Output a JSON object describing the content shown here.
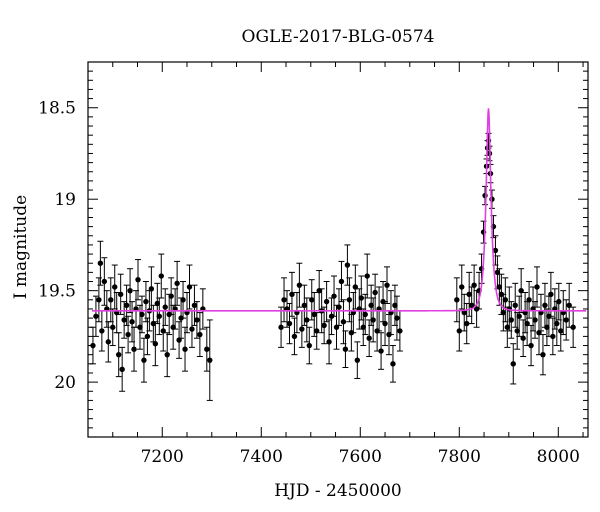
{
  "chart_data": {
    "type": "scatter",
    "title": "OGLE-2017-BLG-0574",
    "xlabel": "HJD - 2450000",
    "ylabel": "I magnitude",
    "xlim": [
      7050,
      8060
    ],
    "ylim": [
      20.3,
      18.25
    ],
    "y_axis_inverted": true,
    "grid": false,
    "x_ticks": [
      "7200",
      "7400",
      "7600",
      "7800",
      "8000"
    ],
    "y_ticks": [
      "18.5",
      "19",
      "19.5",
      "20"
    ],
    "colors": {
      "points": "#000000",
      "model": "#e040e0"
    },
    "series": [
      {
        "type": "scatter_errorbars",
        "points": [
          [
            7060,
            19.8,
            0.1
          ],
          [
            7066,
            19.64,
            0.11
          ],
          [
            7072,
            19.55,
            0.12
          ],
          [
            7075,
            19.35,
            0.12
          ],
          [
            7078,
            19.72,
            0.11
          ],
          [
            7083,
            19.45,
            0.13
          ],
          [
            7088,
            19.6,
            0.1
          ],
          [
            7091,
            19.78,
            0.11
          ],
          [
            7096,
            19.55,
            0.12
          ],
          [
            7100,
            19.7,
            0.1
          ],
          [
            7104,
            19.48,
            0.12
          ],
          [
            7108,
            19.62,
            0.11
          ],
          [
            7112,
            19.85,
            0.12
          ],
          [
            7116,
            19.52,
            0.11
          ],
          [
            7119,
            19.93,
            0.12
          ],
          [
            7123,
            19.66,
            0.1
          ],
          [
            7128,
            19.58,
            0.11
          ],
          [
            7131,
            19.74,
            0.1
          ],
          [
            7135,
            19.5,
            0.12
          ],
          [
            7139,
            19.67,
            0.11
          ],
          [
            7143,
            19.82,
            0.12
          ],
          [
            7147,
            19.6,
            0.1
          ],
          [
            7151,
            19.44,
            0.11
          ],
          [
            7155,
            19.7,
            0.12
          ],
          [
            7159,
            19.63,
            0.1
          ],
          [
            7163,
            19.88,
            0.12
          ],
          [
            7167,
            19.56,
            0.11
          ],
          [
            7170,
            19.75,
            0.1
          ],
          [
            7174,
            19.61,
            0.11
          ],
          [
            7178,
            19.49,
            0.12
          ],
          [
            7182,
            19.68,
            0.1
          ],
          [
            7186,
            19.79,
            0.12
          ],
          [
            7190,
            19.57,
            0.11
          ],
          [
            7194,
            19.64,
            0.1
          ],
          [
            7198,
            19.42,
            0.12
          ],
          [
            7202,
            19.72,
            0.11
          ],
          [
            7206,
            19.59,
            0.1
          ],
          [
            7210,
            19.85,
            0.12
          ],
          [
            7214,
            19.63,
            0.11
          ],
          [
            7218,
            19.53,
            0.1
          ],
          [
            7222,
            19.7,
            0.12
          ],
          [
            7226,
            19.6,
            0.11
          ],
          [
            7230,
            19.46,
            0.12
          ],
          [
            7234,
            19.77,
            0.1
          ],
          [
            7238,
            19.65,
            0.11
          ],
          [
            7242,
            19.55,
            0.1
          ],
          [
            7246,
            19.82,
            0.12
          ],
          [
            7250,
            19.62,
            0.11
          ],
          [
            7255,
            19.48,
            0.12
          ],
          [
            7260,
            19.71,
            0.1
          ],
          [
            7265,
            19.58,
            0.11
          ],
          [
            7270,
            19.66,
            0.1
          ],
          [
            7276,
            19.74,
            0.12
          ],
          [
            7282,
            19.6,
            0.11
          ],
          [
            7290,
            19.82,
            0.12
          ],
          [
            7296,
            19.88,
            0.22
          ],
          [
            7440,
            19.7,
            0.11
          ],
          [
            7446,
            19.55,
            0.12
          ],
          [
            7452,
            19.6,
            0.1
          ],
          [
            7457,
            19.68,
            0.11
          ],
          [
            7462,
            19.52,
            0.12
          ],
          [
            7467,
            19.75,
            0.1
          ],
          [
            7472,
            19.62,
            0.11
          ],
          [
            7477,
            19.47,
            0.12
          ],
          [
            7482,
            19.71,
            0.1
          ],
          [
            7487,
            19.58,
            0.11
          ],
          [
            7492,
            19.66,
            0.12
          ],
          [
            7497,
            19.8,
            0.1
          ],
          [
            7502,
            19.55,
            0.11
          ],
          [
            7507,
            19.63,
            0.12
          ],
          [
            7512,
            19.72,
            0.1
          ],
          [
            7517,
            19.5,
            0.11
          ],
          [
            7522,
            19.61,
            0.12
          ],
          [
            7527,
            19.69,
            0.1
          ],
          [
            7532,
            19.56,
            0.11
          ],
          [
            7537,
            19.78,
            0.12
          ],
          [
            7542,
            19.64,
            0.1
          ],
          [
            7547,
            19.53,
            0.11
          ],
          [
            7552,
            19.7,
            0.12
          ],
          [
            7557,
            19.59,
            0.1
          ],
          [
            7562,
            19.45,
            0.11
          ],
          [
            7566,
            19.67,
            0.12
          ],
          [
            7570,
            19.82,
            0.1
          ],
          [
            7574,
            19.36,
            0.11
          ],
          [
            7578,
            19.55,
            0.12
          ],
          [
            7582,
            19.73,
            0.1
          ],
          [
            7586,
            19.62,
            0.11
          ],
          [
            7590,
            19.48,
            0.12
          ],
          [
            7594,
            19.88,
            0.1
          ],
          [
            7598,
            19.6,
            0.11
          ],
          [
            7602,
            19.54,
            0.12
          ],
          [
            7606,
            19.7,
            0.1
          ],
          [
            7610,
            19.63,
            0.11
          ],
          [
            7614,
            19.42,
            0.12
          ],
          [
            7618,
            19.76,
            0.1
          ],
          [
            7622,
            19.58,
            0.11
          ],
          [
            7626,
            19.66,
            0.12
          ],
          [
            7630,
            19.51,
            0.1
          ],
          [
            7634,
            19.72,
            0.11
          ],
          [
            7638,
            19.6,
            0.12
          ],
          [
            7642,
            19.83,
            0.1
          ],
          [
            7646,
            19.56,
            0.11
          ],
          [
            7650,
            19.68,
            0.12
          ],
          [
            7654,
            19.47,
            0.1
          ],
          [
            7658,
            19.74,
            0.11
          ],
          [
            7662,
            19.62,
            0.12
          ],
          [
            7666,
            19.9,
            0.1
          ],
          [
            7670,
            19.58,
            0.11
          ],
          [
            7674,
            19.65,
            0.12
          ],
          [
            7680,
            19.72,
            0.11
          ],
          [
            7795,
            19.55,
            0.12
          ],
          [
            7800,
            19.72,
            0.11
          ],
          [
            7805,
            19.48,
            0.12
          ],
          [
            7810,
            19.62,
            0.1
          ],
          [
            7815,
            19.68,
            0.11
          ],
          [
            7820,
            19.52,
            0.12
          ],
          [
            7825,
            19.58,
            0.1
          ],
          [
            7830,
            19.47,
            0.11
          ],
          [
            7835,
            19.6,
            0.1
          ],
          [
            7840,
            19.5,
            0.1
          ],
          [
            7845,
            19.38,
            0.08
          ],
          [
            7849,
            19.18,
            0.06
          ],
          [
            7852,
            18.98,
            0.05
          ],
          [
            7855,
            18.82,
            0.04
          ],
          [
            7857,
            18.72,
            0.04
          ],
          [
            7859,
            18.68,
            0.04
          ],
          [
            7861,
            18.75,
            0.04
          ],
          [
            7863,
            18.86,
            0.05
          ],
          [
            7866,
            19.0,
            0.05
          ],
          [
            7869,
            19.15,
            0.06
          ],
          [
            7873,
            19.28,
            0.08
          ],
          [
            7877,
            19.4,
            0.09
          ],
          [
            7881,
            19.48,
            0.1
          ],
          [
            7885,
            19.52,
            0.11
          ],
          [
            7889,
            19.62,
            0.1
          ],
          [
            7893,
            19.55,
            0.12
          ],
          [
            7897,
            19.7,
            0.11
          ],
          [
            7901,
            19.6,
            0.12
          ],
          [
            7905,
            19.66,
            0.1
          ],
          [
            7909,
            19.9,
            0.11
          ],
          [
            7913,
            19.58,
            0.12
          ],
          [
            7917,
            19.72,
            0.1
          ],
          [
            7921,
            19.64,
            0.11
          ],
          [
            7925,
            19.5,
            0.12
          ],
          [
            7929,
            19.76,
            0.1
          ],
          [
            7933,
            19.62,
            0.11
          ],
          [
            7937,
            19.68,
            0.12
          ],
          [
            7941,
            19.55,
            0.1
          ],
          [
            7945,
            19.8,
            0.11
          ],
          [
            7949,
            19.6,
            0.12
          ],
          [
            7953,
            19.66,
            0.1
          ],
          [
            7957,
            19.48,
            0.11
          ],
          [
            7961,
            19.73,
            0.12
          ],
          [
            7965,
            19.62,
            0.1
          ],
          [
            7969,
            19.85,
            0.11
          ],
          [
            7973,
            19.58,
            0.12
          ],
          [
            7977,
            19.7,
            0.1
          ],
          [
            7981,
            19.64,
            0.11
          ],
          [
            7985,
            19.52,
            0.12
          ],
          [
            7989,
            19.75,
            0.1
          ],
          [
            7993,
            19.6,
            0.11
          ],
          [
            7997,
            19.68,
            0.12
          ],
          [
            8001,
            19.56,
            0.1
          ],
          [
            8005,
            19.72,
            0.11
          ],
          [
            8010,
            19.62,
            0.12
          ],
          [
            8016,
            19.66,
            0.11
          ],
          [
            8022,
            19.58,
            0.12
          ],
          [
            8030,
            19.7,
            0.11
          ]
        ]
      },
      {
        "type": "line",
        "model": {
          "baseline": 19.61,
          "t0": 7859,
          "tE": 9.8,
          "u0": 0.38
        }
      }
    ]
  }
}
